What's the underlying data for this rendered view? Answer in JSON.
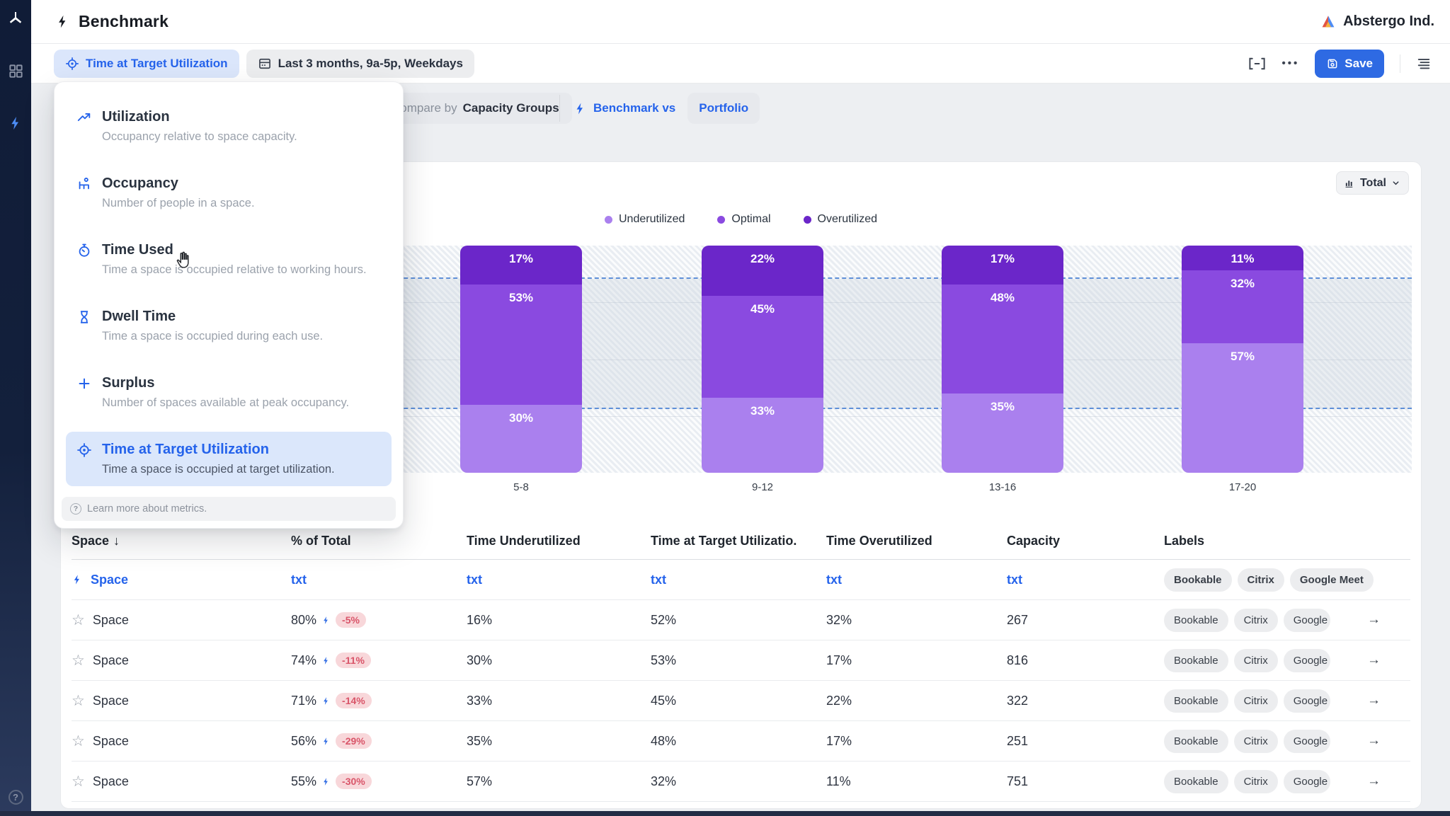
{
  "app": {
    "page_title": "Benchmark",
    "org_name": "Abstergo Ind."
  },
  "toolbar": {
    "metric_button": "Time at Target Utilization",
    "date_filter": "Last 3 months, 9a-5p, Weekdays",
    "save_label": "Save"
  },
  "subtoolbar": {
    "compare_by_label": "Compare by",
    "compare_by_value": "Capacity Groups",
    "benchmark_vs_label": "Benchmark vs",
    "portfolio_label": "Portfolio"
  },
  "metric_menu": {
    "items": [
      {
        "icon": "trending-up",
        "title": "Utilization",
        "description": "Occupancy relative to space capacity.",
        "selected": false
      },
      {
        "icon": "person-desk",
        "title": "Occupancy",
        "description": "Number of people in a space.",
        "selected": false
      },
      {
        "icon": "stopwatch",
        "title": "Time Used",
        "description": "Time a space is occupied relative to working hours.",
        "selected": false
      },
      {
        "icon": "hourglass",
        "title": "Dwell Time",
        "description": "Time a space is occupied during each use.",
        "selected": false
      },
      {
        "icon": "plus",
        "title": "Surplus",
        "description": "Number of spaces available at peak occupancy.",
        "selected": false
      },
      {
        "icon": "target",
        "title": "Time at Target Utilization",
        "description": "Time a space is occupied at target utilization.",
        "selected": true
      }
    ],
    "footer": "Learn more about metrics."
  },
  "chart": {
    "total_selector": "Total"
  },
  "chart_data": {
    "type": "bar",
    "stacked": true,
    "categories": [
      "5-8",
      "9-12",
      "13-16",
      "17-20"
    ],
    "series": [
      {
        "name": "Underutilized",
        "color": "#aa80ee",
        "values": [
          30,
          33,
          35,
          57
        ]
      },
      {
        "name": "Optimal",
        "color": "#8a4ae0",
        "values": [
          53,
          45,
          48,
          32
        ]
      },
      {
        "name": "Overutilized",
        "color": "#6b26c9",
        "values": [
          17,
          22,
          17,
          11
        ]
      }
    ],
    "value_suffix": "%",
    "ylim": [
      0,
      100
    ],
    "legend_position": "top",
    "grid": "subtle-horizontal",
    "benchmark_lines_pct_from_bottom": [
      85.5,
      28
    ]
  },
  "table": {
    "columns": [
      "Space",
      "% of Total",
      "Time Underutilized",
      "Time at Target Utilizatio.",
      "Time Overutilized",
      "Capacity",
      "Labels"
    ],
    "benchmark_row": {
      "name": "Space",
      "pct_total": "txt",
      "time_under": "txt",
      "time_target": "txt",
      "time_over": "txt",
      "capacity": "txt",
      "labels": [
        "Bookable",
        "Citrix",
        "Google Meet"
      ]
    },
    "rows": [
      {
        "name": "Space",
        "pct_total": "80%",
        "delta": "-5%",
        "time_under": "16%",
        "time_target": "52%",
        "time_over": "32%",
        "capacity": "267",
        "labels": [
          "Bookable",
          "Citrix",
          "Google"
        ]
      },
      {
        "name": "Space",
        "pct_total": "74%",
        "delta": "-11%",
        "time_under": "30%",
        "time_target": "53%",
        "time_over": "17%",
        "capacity": "816",
        "labels": [
          "Bookable",
          "Citrix",
          "Google"
        ]
      },
      {
        "name": "Space",
        "pct_total": "71%",
        "delta": "-14%",
        "time_under": "33%",
        "time_target": "45%",
        "time_over": "22%",
        "capacity": "322",
        "labels": [
          "Bookable",
          "Citrix",
          "Google"
        ]
      },
      {
        "name": "Space",
        "pct_total": "56%",
        "delta": "-29%",
        "time_under": "35%",
        "time_target": "48%",
        "time_over": "17%",
        "capacity": "251",
        "labels": [
          "Bookable",
          "Citrix",
          "Google"
        ]
      },
      {
        "name": "Space",
        "pct_total": "55%",
        "delta": "-30%",
        "time_under": "57%",
        "time_target": "32%",
        "time_over": "11%",
        "capacity": "751",
        "labels": [
          "Bookable",
          "Citrix",
          "Google"
        ]
      }
    ]
  },
  "icons": {
    "sort_desc": "↓",
    "star": "☆",
    "row_arrow": "→",
    "more": "•••",
    "help": "?"
  },
  "colors": {
    "accent_blue": "#2563eb",
    "save_blue": "#2e6ae3",
    "selected_bg": "#dbe7fb",
    "delta_pill_bg": "#f8d7da",
    "delta_pill_text": "#d95569",
    "benchmark_dash": "#5e8fd8"
  }
}
